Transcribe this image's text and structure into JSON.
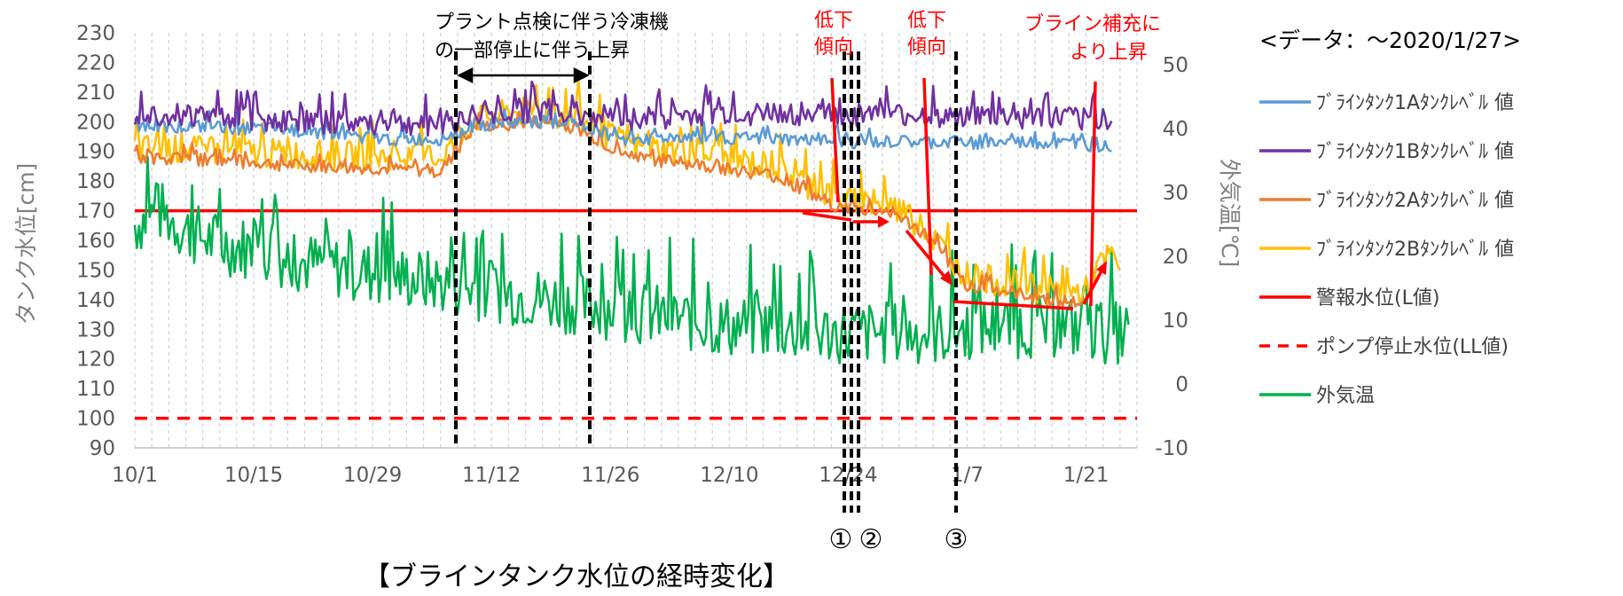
{
  "chart_data": {
    "type": "line",
    "title": "【ブラインタンク水位の経時変化】",
    "data_note": "<データ：～2020/1/27>",
    "ylabel": "タンク水位[cm]",
    "y2label": "外気温[℃]",
    "ylim": [
      90,
      230
    ],
    "y2lim": [
      -10,
      55
    ],
    "y_ticks": [
      "90",
      "100",
      "110",
      "120",
      "130",
      "140",
      "150",
      "160",
      "170",
      "180",
      "190",
      "200",
      "210",
      "220",
      "230"
    ],
    "y2_ticks": [
      "-10",
      "0",
      "10",
      "20",
      "30",
      "40",
      "50"
    ],
    "x_ticks": [
      "10/1",
      "10/15",
      "10/29",
      "11/12",
      "11/26",
      "12/10",
      "12/24",
      "1/7",
      "1/21"
    ],
    "x_range_days": [
      0,
      118
    ],
    "x_tick_days": [
      0,
      14,
      28,
      42,
      56,
      70,
      84,
      98,
      112
    ],
    "grid": "vertical dashed",
    "legend_position": "right",
    "series": [
      {
        "name": "ﾌﾞﾗｲﾝﾀﾝｸ1Aﾀﾝｸﾚﾍﾞﾙ 値",
        "color": "#5b9bd5",
        "axis": "left",
        "x": [
          0,
          10,
          20,
          30,
          36,
          40,
          47,
          52,
          58,
          65,
          75,
          85,
          95,
          105,
          115
        ],
        "y": [
          199,
          198,
          197,
          194,
          194,
          199,
          200,
          199,
          194,
          195,
          194,
          193,
          193,
          193,
          192
        ]
      },
      {
        "name": "ﾌﾞﾗｲﾝﾀﾝｸ1Bﾀﾝｸﾚﾍﾞﾙ 値",
        "color": "#7030a0",
        "axis": "left",
        "x": [
          0,
          10,
          20,
          30,
          36,
          40,
          47,
          52,
          58,
          65,
          75,
          85,
          95,
          105,
          115
        ],
        "y": [
          203,
          202,
          200,
          199,
          199,
          202,
          204,
          203,
          201,
          202,
          203,
          202,
          202,
          201,
          201
        ]
      },
      {
        "name": "ﾌﾞﾗｲﾝﾀﾝｸ2Aﾀﾝｸﾚﾍﾞﾙ 値",
        "color": "#ed7d31",
        "axis": "left",
        "x": [
          0,
          10,
          20,
          30,
          36,
          40,
          47,
          52,
          58,
          65,
          75,
          80,
          83,
          86,
          89,
          93,
          98,
          110,
          112
        ],
        "y": [
          188,
          187,
          185,
          184,
          183,
          198,
          200,
          198,
          188,
          186,
          182,
          175,
          171,
          170,
          170,
          162,
          145,
          139,
          139
        ]
      },
      {
        "name": "ﾌﾞﾗｲﾝﾀﾝｸ2Bﾀﾝｸﾚﾍﾞﾙ 値",
        "color": "#ffc000",
        "axis": "left",
        "x": [
          0,
          10,
          20,
          30,
          36,
          40,
          47,
          52,
          58,
          65,
          75,
          80,
          83,
          86,
          89,
          93,
          98,
          110,
          112,
          113,
          115,
          116
        ],
        "y": [
          191,
          190,
          189,
          188,
          188,
          201,
          204,
          201,
          192,
          190,
          185,
          178,
          174,
          172,
          172,
          164,
          148,
          142,
          143,
          150,
          155,
          151
        ]
      },
      {
        "name": "警報水位(L値)",
        "color": "#ff0000",
        "axis": "left",
        "style": "solid",
        "x": [
          0,
          118
        ],
        "y": [
          170,
          170
        ]
      },
      {
        "name": "ポンプ停止水位(LL値)",
        "color": "#ff0000",
        "axis": "left",
        "style": "dashed",
        "x": [
          0,
          118
        ],
        "y": [
          100,
          100
        ]
      },
      {
        "name": "外気温",
        "color": "#00b050",
        "axis": "right",
        "x": [
          0,
          3,
          6,
          10,
          15,
          20,
          25,
          30,
          35,
          40,
          45,
          50,
          55,
          60,
          65,
          70,
          75,
          80,
          85,
          90,
          95,
          100,
          105,
          110,
          115,
          117
        ],
        "y": [
          25,
          27,
          24,
          22,
          21,
          19,
          18,
          17,
          16,
          15,
          14,
          13,
          12,
          11,
          10,
          9,
          9,
          8,
          8,
          8,
          8,
          9,
          9,
          9,
          8,
          8
        ]
      }
    ]
  },
  "annotations": {
    "plant_note": [
      "プラント点検に伴う冷凍機",
      "の一部停止に伴う上昇"
    ],
    "low1": [
      "低下",
      "傾向"
    ],
    "low2": [
      "低下",
      "傾向"
    ],
    "brine": [
      "ブライン補充に",
      "より上昇"
    ],
    "markers": [
      "①",
      "②",
      "③"
    ]
  }
}
